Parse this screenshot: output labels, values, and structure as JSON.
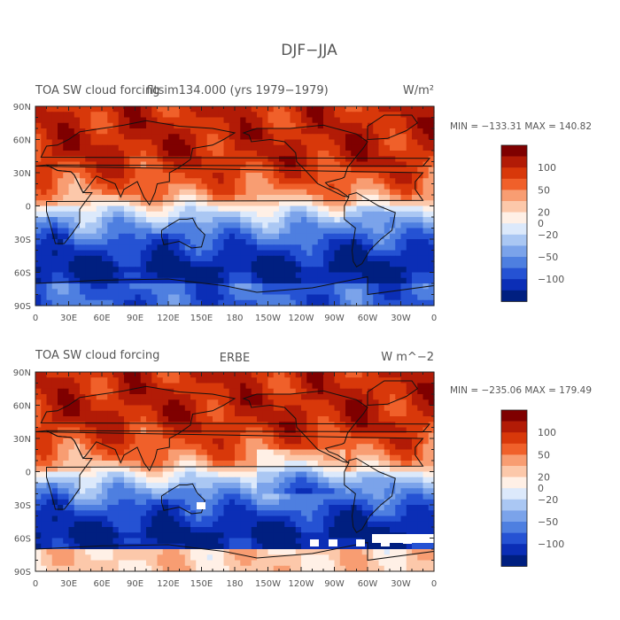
{
  "figure_title": "DJF−JJA",
  "chart_data": [
    {
      "type": "heatmap",
      "title_left": "TOA SW cloud forcing",
      "title_center": "fltsim134.000 (yrs 1979−1979)",
      "units": "W/m²",
      "stats": "MIN = −133.31  MAX = 140.82",
      "min": -133.31,
      "max": 140.82,
      "x_ticks": [
        "0",
        "30E",
        "60E",
        "90E",
        "120E",
        "150E",
        "180",
        "150W",
        "120W",
        "90W",
        "60W",
        "30W",
        "0"
      ],
      "y_ticks": [
        "90N",
        "60N",
        "30N",
        "0",
        "30S",
        "60S",
        "90S"
      ],
      "colorbar_labels": [
        "100",
        "50",
        "20",
        "0",
        "−20",
        "−50",
        "−100"
      ]
    },
    {
      "type": "heatmap",
      "title_left": "TOA SW cloud forcing",
      "title_center": "ERBE",
      "units": "W m^−2",
      "stats": "MIN = −235.06  MAX = 179.49",
      "min": -235.06,
      "max": 179.49,
      "x_ticks": [
        "0",
        "30E",
        "60E",
        "90E",
        "120E",
        "150E",
        "180",
        "150W",
        "120W",
        "90W",
        "60W",
        "30W",
        "0"
      ],
      "y_ticks": [
        "90N",
        "60N",
        "30N",
        "0",
        "30S",
        "60S",
        "90S"
      ],
      "colorbar_labels": [
        "100",
        "50",
        "20",
        "0",
        "−20",
        "−50",
        "−100"
      ]
    }
  ],
  "colorbar_colors": [
    "#7f0000",
    "#b21b06",
    "#d8380a",
    "#f0602a",
    "#f89d72",
    "#fcc8aa",
    "#fff0e6",
    "#dce9fb",
    "#aac7f3",
    "#7ba3ea",
    "#4e7fe0",
    "#2552d3",
    "#0b2eb6",
    "#001f80"
  ]
}
